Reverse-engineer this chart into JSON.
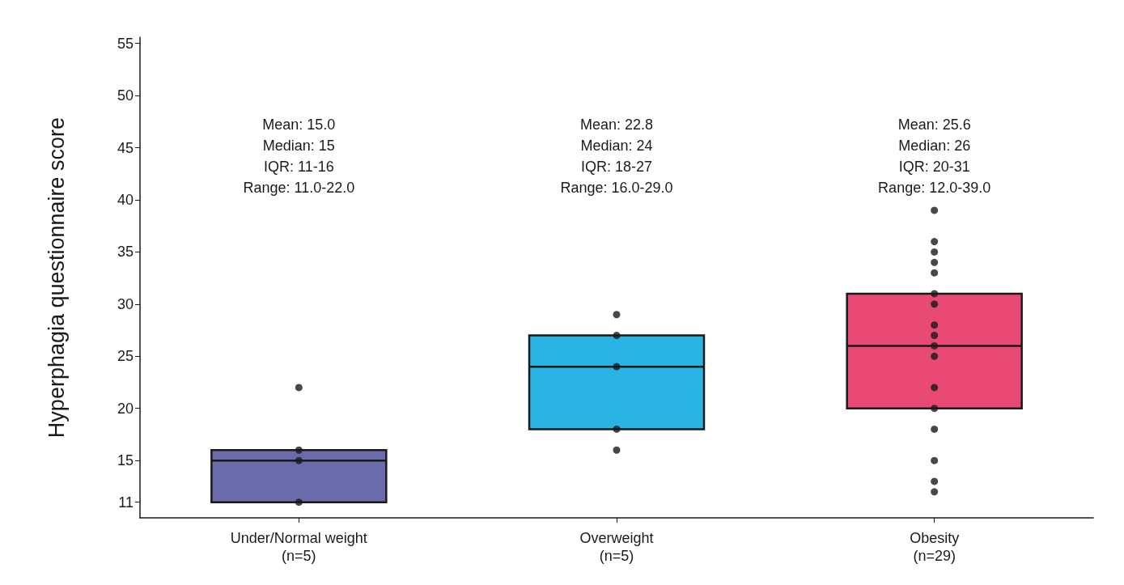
{
  "chart_data": {
    "type": "box",
    "ylabel": "Hyperphagia questionnaire score",
    "categories": [
      "Under/Normal weight\n(n=5)",
      "Overweight\n(n=5)",
      "Obesity\n(n=29)"
    ],
    "boxes": [
      {
        "low": 11,
        "q1": 11,
        "median": 15,
        "q3": 16,
        "high": 16
      },
      {
        "low": 18,
        "q1": 18,
        "median": 24,
        "q3": 27,
        "high": 27
      },
      {
        "low": 20,
        "q1": 20,
        "median": 26,
        "q3": 31,
        "high": 31
      }
    ],
    "colors": [
      "#6b6bab",
      "#29b3e3",
      "#e84a75"
    ],
    "series": [
      {
        "type": "scatter",
        "color": "#1a1a1a",
        "marker": "circle",
        "x": [
          "Under/Normal weight\n(n=5)",
          "Under/Normal weight\n(n=5)",
          "Under/Normal weight\n(n=5)",
          "Under/Normal weight\n(n=5)",
          "Overweight\n(n=5)",
          "Overweight\n(n=5)",
          "Overweight\n(n=5)",
          "Overweight\n(n=5)",
          "Overweight\n(n=5)",
          "Obesity\n(n=29)",
          "Obesity\n(n=29)",
          "Obesity\n(n=29)",
          "Obesity\n(n=29)",
          "Obesity\n(n=29)",
          "Obesity\n(n=29)",
          "Obesity\n(n=29)",
          "Obesity\n(n=29)",
          "Obesity\n(n=29)",
          "Obesity\n(n=29)",
          "Obesity\n(n=29)",
          "Obesity\n(n=29)",
          "Obesity\n(n=29)",
          "Obesity\n(n=29)",
          "Obesity\n(n=29)",
          "Obesity\n(n=29)",
          "Obesity\n(n=29)"
        ],
        "values": [
          22,
          16,
          15,
          11,
          29,
          27,
          24,
          18,
          16,
          39,
          36,
          35,
          34,
          33,
          31,
          30,
          28,
          27,
          26,
          25,
          22,
          20,
          18,
          15,
          13,
          12
        ]
      }
    ],
    "annotations": [
      "Mean: 15.0\nMedian: 15\nIQR: 11-16\nRange: 11.0-22.0",
      "Mean: 22.8\nMedian: 24\nIQR: 18-27\nRange: 16.0-29.0",
      "Mean: 25.6\nMedian: 26\nIQR: 20-31\nRange: 12.0-39.0"
    ],
    "ylim": [
      9.5,
      55.6
    ],
    "yticks": [
      11,
      15,
      20,
      25,
      30,
      35,
      40,
      45,
      50,
      55
    ]
  }
}
